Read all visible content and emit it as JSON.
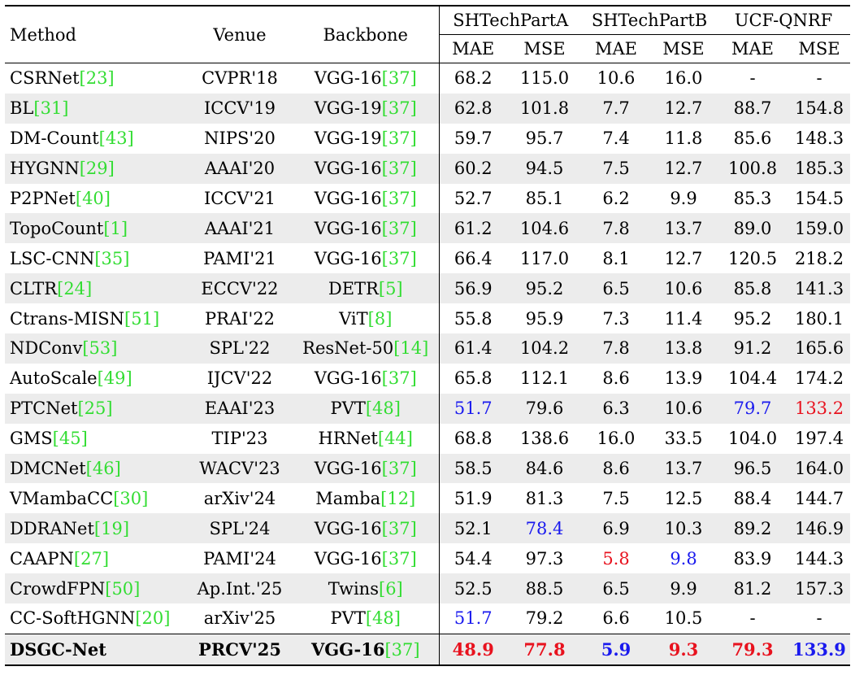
{
  "header": {
    "method": "Method",
    "venue": "Venue",
    "backbone": "Backbone",
    "groups": [
      "SHTechPartA",
      "SHTechPartB",
      "UCF-QNRF"
    ],
    "mae": "MAE",
    "mse": "MSE"
  },
  "colors": {
    "cite": "#33dd33",
    "red": "#e8121e",
    "blue": "#1a1aee"
  },
  "rows": [
    {
      "method": "CSRNet",
      "mcite": "[23]",
      "venue": "CVPR'18",
      "backbone": "VGG-16",
      "bcite": "[37]",
      "a_mae": "68.2",
      "a_mse": "115.0",
      "b_mae": "10.6",
      "b_mse": "16.0",
      "q_mae": "-",
      "q_mse": "-"
    },
    {
      "method": "BL",
      "mcite": "[31]",
      "venue": "ICCV'19",
      "backbone": "VGG-19",
      "bcite": "[37]",
      "a_mae": "62.8",
      "a_mse": "101.8",
      "b_mae": "7.7",
      "b_mse": "12.7",
      "q_mae": "88.7",
      "q_mse": "154.8"
    },
    {
      "method": "DM-Count",
      "mcite": "[43]",
      "venue": "NIPS'20",
      "backbone": "VGG-19",
      "bcite": "[37]",
      "a_mae": "59.7",
      "a_mse": "95.7",
      "b_mae": "7.4",
      "b_mse": "11.8",
      "q_mae": "85.6",
      "q_mse": "148.3"
    },
    {
      "method": "HYGNN",
      "mcite": "[29]",
      "venue": "AAAI'20",
      "backbone": "VGG-16",
      "bcite": "[37]",
      "a_mae": "60.2",
      "a_mse": "94.5",
      "b_mae": "7.5",
      "b_mse": "12.7",
      "q_mae": "100.8",
      "q_mse": "185.3"
    },
    {
      "method": "P2PNet",
      "mcite": "[40]",
      "venue": "ICCV'21",
      "backbone": "VGG-16",
      "bcite": "[37]",
      "a_mae": "52.7",
      "a_mse": "85.1",
      "b_mae": "6.2",
      "b_mse": "9.9",
      "q_mae": "85.3",
      "q_mse": "154.5"
    },
    {
      "method": "TopoCount",
      "mcite": "[1]",
      "venue": "AAAI'21",
      "backbone": "VGG-16",
      "bcite": "[37]",
      "a_mae": "61.2",
      "a_mse": "104.6",
      "b_mae": "7.8",
      "b_mse": "13.7",
      "q_mae": "89.0",
      "q_mse": "159.0"
    },
    {
      "method": "LSC-CNN",
      "mcite": "[35]",
      "venue": "PAMI'21",
      "backbone": "VGG-16",
      "bcite": "[37]",
      "a_mae": "66.4",
      "a_mse": "117.0",
      "b_mae": "8.1",
      "b_mse": "12.7",
      "q_mae": "120.5",
      "q_mse": "218.2"
    },
    {
      "method": "CLTR",
      "mcite": "[24]",
      "venue": "ECCV'22",
      "backbone": "DETR",
      "bcite": "[5]",
      "a_mae": "56.9",
      "a_mse": "95.2",
      "b_mae": "6.5",
      "b_mse": "10.6",
      "q_mae": "85.8",
      "q_mse": "141.3"
    },
    {
      "method": "Ctrans-MISN",
      "mcite": "[51]",
      "venue": "PRAI'22",
      "backbone": "ViT",
      "bcite": "[8]",
      "a_mae": "55.8",
      "a_mse": "95.9",
      "b_mae": "7.3",
      "b_mse": "11.4",
      "q_mae": "95.2",
      "q_mse": "180.1"
    },
    {
      "method": "NDConv",
      "mcite": "[53]",
      "venue": "SPL'22",
      "backbone": "ResNet-50",
      "bcite": "[14]",
      "a_mae": "61.4",
      "a_mse": "104.2",
      "b_mae": "7.8",
      "b_mse": "13.8",
      "q_mae": "91.2",
      "q_mse": "165.6"
    },
    {
      "method": "AutoScale",
      "mcite": "[49]",
      "venue": "IJCV'22",
      "backbone": "VGG-16",
      "bcite": "[37]",
      "a_mae": "65.8",
      "a_mse": "112.1",
      "b_mae": "8.6",
      "b_mse": "13.9",
      "q_mae": "104.4",
      "q_mse": "174.2"
    },
    {
      "method": "PTCNet",
      "mcite": "[25]",
      "venue": "EAAI'23",
      "backbone": "PVT",
      "bcite": "[48]",
      "a_mae": "51.7",
      "a_mse": "79.6",
      "b_mae": "6.3",
      "b_mse": "10.6",
      "q_mae": "79.7",
      "q_mse": "133.2"
    },
    {
      "method": "GMS",
      "mcite": "[45]",
      "venue": "TIP'23",
      "backbone": "HRNet",
      "bcite": "[44]",
      "a_mae": "68.8",
      "a_mse": "138.6",
      "b_mae": "16.0",
      "b_mse": "33.5",
      "q_mae": "104.0",
      "q_mse": "197.4"
    },
    {
      "method": "DMCNet",
      "mcite": "[46]",
      "venue": "WACV'23",
      "backbone": "VGG-16",
      "bcite": "[37]",
      "a_mae": "58.5",
      "a_mse": "84.6",
      "b_mae": "8.6",
      "b_mse": "13.7",
      "q_mae": "96.5",
      "q_mse": "164.0"
    },
    {
      "method": "VMambaCC",
      "mcite": "[30]",
      "venue": "arXiv'24",
      "backbone": "Mamba",
      "bcite": "[12]",
      "a_mae": "51.9",
      "a_mse": "81.3",
      "b_mae": "7.5",
      "b_mse": "12.5",
      "q_mae": "88.4",
      "q_mse": "144.7"
    },
    {
      "method": "DDRANet",
      "mcite": "[19]",
      "venue": "SPL'24",
      "backbone": "VGG-16",
      "bcite": "[37]",
      "a_mae": "52.1",
      "a_mse": "78.4",
      "b_mae": "6.9",
      "b_mse": "10.3",
      "q_mae": "89.2",
      "q_mse": "146.9"
    },
    {
      "method": "CAAPN",
      "mcite": "[27]",
      "venue": "PAMI'24",
      "backbone": "VGG-16",
      "bcite": "[37]",
      "a_mae": "54.4",
      "a_mse": "97.3",
      "b_mae": "5.8",
      "b_mse": "9.8",
      "q_mae": "83.9",
      "q_mse": "144.3"
    },
    {
      "method": "CrowdFPN",
      "mcite": "[50]",
      "venue": "Ap.Int.'25",
      "backbone": "Twins",
      "bcite": "[6]",
      "a_mae": "52.5",
      "a_mse": "88.5",
      "b_mae": "6.5",
      "b_mse": "9.9",
      "q_mae": "81.2",
      "q_mse": "157.3"
    },
    {
      "method": "CC-SoftHGNN",
      "mcite": "[20]",
      "venue": "arXiv'25",
      "backbone": "PVT",
      "bcite": "[48]",
      "a_mae": "51.7",
      "a_mse": "79.2",
      "b_mae": "6.6",
      "b_mse": "10.5",
      "q_mae": "-",
      "q_mse": "-"
    },
    {
      "method": "DSGC-Net",
      "mcite": "",
      "venue": "PRCV'25",
      "backbone": "VGG-16",
      "bcite": "[37]",
      "a_mae": "48.9",
      "a_mse": "77.8",
      "b_mae": "5.9",
      "b_mse": "9.3",
      "q_mae": "79.3",
      "q_mse": "133.9"
    }
  ],
  "highlights": {
    "red": [
      [
        16,
        "b_mae"
      ],
      [
        11,
        "q_mse"
      ],
      [
        19,
        "a_mae"
      ],
      [
        19,
        "a_mse"
      ],
      [
        19,
        "b_mse"
      ],
      [
        19,
        "q_mae"
      ]
    ],
    "blue": [
      [
        11,
        "a_mae"
      ],
      [
        18,
        "a_mae"
      ],
      [
        15,
        "a_mse"
      ],
      [
        16,
        "b_mse"
      ],
      [
        11,
        "q_mae"
      ],
      [
        19,
        "b_mae"
      ],
      [
        19,
        "q_mse"
      ]
    ]
  }
}
